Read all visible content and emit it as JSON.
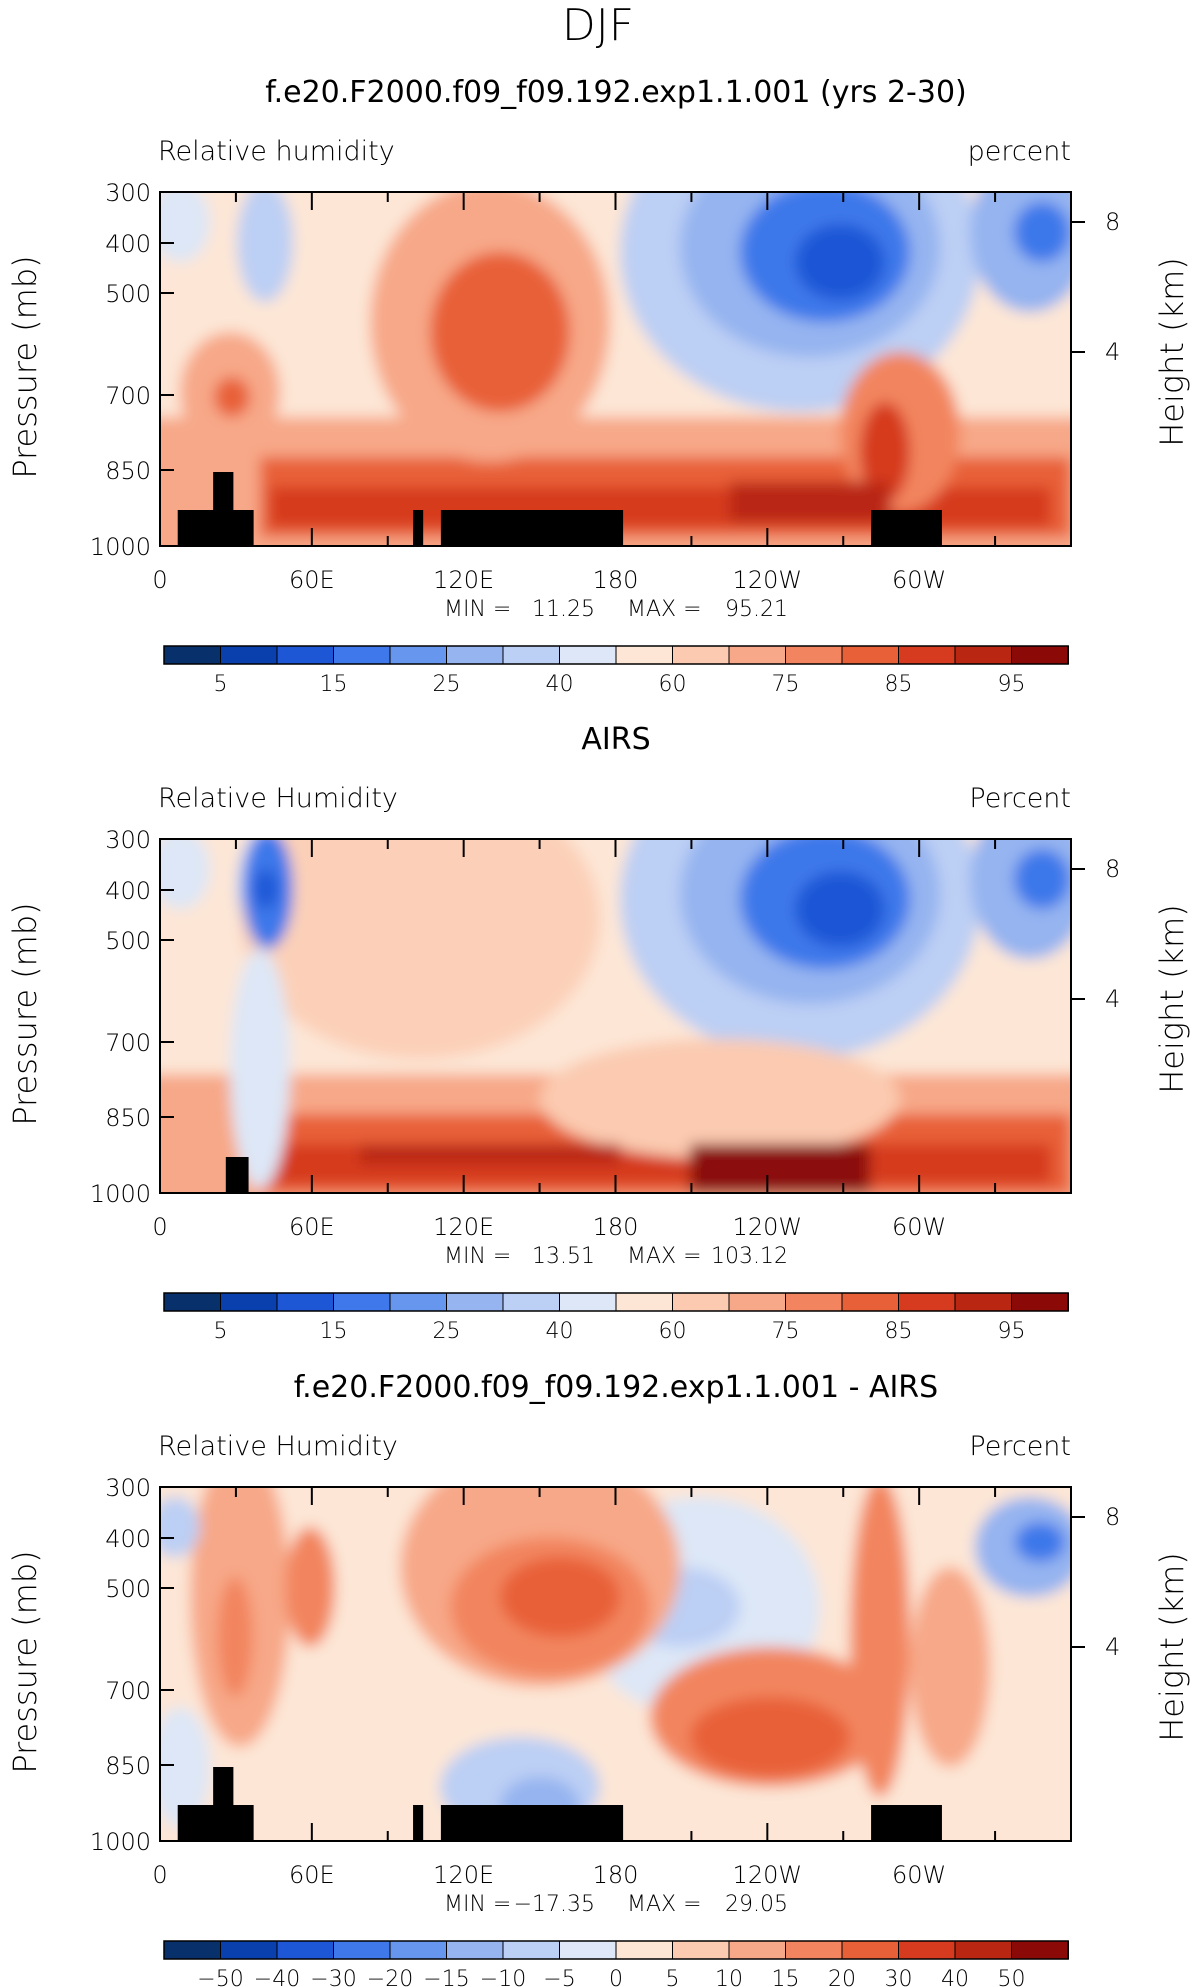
{
  "page_title": "DJF",
  "axes_common": {
    "y_label_left": "Pressure (mb)",
    "y_label_right": "Height (km)",
    "y_ticks": [
      "300",
      "400",
      "500",
      "700",
      "850",
      "1000"
    ],
    "y_tick_values": [
      300,
      400,
      500,
      700,
      850,
      1000
    ],
    "y_right_ticks": [
      "8",
      "4"
    ],
    "y_right_tick_values": [
      8,
      4
    ],
    "x_ticks": [
      "0",
      "60E",
      "120E",
      "180",
      "120W",
      "60W"
    ],
    "x_tick_values": [
      0,
      60,
      120,
      180,
      240,
      300
    ],
    "x_range": [
      0,
      360
    ],
    "y_range": [
      300,
      1000
    ]
  },
  "chart_data": [
    {
      "type": "heatmap",
      "title": "f.e20.F2000.f09_f09.192.exp1.1.001 (yrs 2-30)",
      "left_label": "Relative humidity",
      "right_label": "percent",
      "min_label": "MIN =",
      "min_value": "11.25",
      "max_label": "MAX =",
      "max_value": "95.21",
      "colorbar_labels": [
        "5",
        "15",
        "25",
        "40",
        "60",
        "75",
        "85",
        "95"
      ],
      "colorbar_colors": [
        "#08306b",
        "#0a3fae",
        "#1d57d6",
        "#3e78ea",
        "#6796ee",
        "#95b4f0",
        "#bccff4",
        "#dde7f7",
        "#fde6d6",
        "#fbcab0",
        "#f7a888",
        "#f2855f",
        "#e86038",
        "#d63b1f",
        "#b92713",
        "#8b0a08"
      ],
      "levels": [
        5,
        10,
        15,
        20,
        25,
        30,
        40,
        50,
        60,
        65,
        75,
        80,
        85,
        90,
        95
      ],
      "topography": "full"
    },
    {
      "type": "heatmap",
      "title": "AIRS",
      "left_label": "Relative Humidity",
      "right_label": "Percent",
      "min_label": "MIN =",
      "min_value": "13.51",
      "max_label": "MAX =",
      "max_value": "103.12",
      "colorbar_labels": [
        "5",
        "15",
        "25",
        "40",
        "60",
        "75",
        "85",
        "95"
      ],
      "colorbar_colors": [
        "#08306b",
        "#0a3fae",
        "#1d57d6",
        "#3e78ea",
        "#6796ee",
        "#95b4f0",
        "#bccff4",
        "#dde7f7",
        "#fde6d6",
        "#fbcab0",
        "#f7a888",
        "#f2855f",
        "#e86038",
        "#d63b1f",
        "#b92713",
        "#8b0a08"
      ],
      "levels": [
        5,
        10,
        15,
        20,
        25,
        30,
        40,
        50,
        60,
        65,
        75,
        80,
        85,
        90,
        95
      ],
      "topography": "partial"
    },
    {
      "type": "heatmap",
      "title": "f.e20.F2000.f09_f09.192.exp1.1.001 - AIRS",
      "left_label": "Relative Humidity",
      "right_label": "Percent",
      "min_label": "MIN =",
      "min_value": "−17.35",
      "max_label": "MAX =",
      "max_value": "29.05",
      "colorbar_labels": [
        "−50",
        "−40",
        "−30",
        "−20",
        "−15",
        "−10",
        "−5",
        "0",
        "5",
        "10",
        "15",
        "20",
        "30",
        "40",
        "50"
      ],
      "colorbar_colors": [
        "#08306b",
        "#0a3fae",
        "#1d57d6",
        "#3e78ea",
        "#6796ee",
        "#95b4f0",
        "#bccff4",
        "#dde7f7",
        "#fde6d6",
        "#fbcab0",
        "#f7a888",
        "#f2855f",
        "#e86038",
        "#d63b1f",
        "#b92713",
        "#8b0a08"
      ],
      "levels": [
        -50,
        -40,
        -30,
        -20,
        -15,
        -10,
        -5,
        0,
        5,
        10,
        15,
        20,
        30,
        40,
        50
      ],
      "topography": "full"
    }
  ]
}
